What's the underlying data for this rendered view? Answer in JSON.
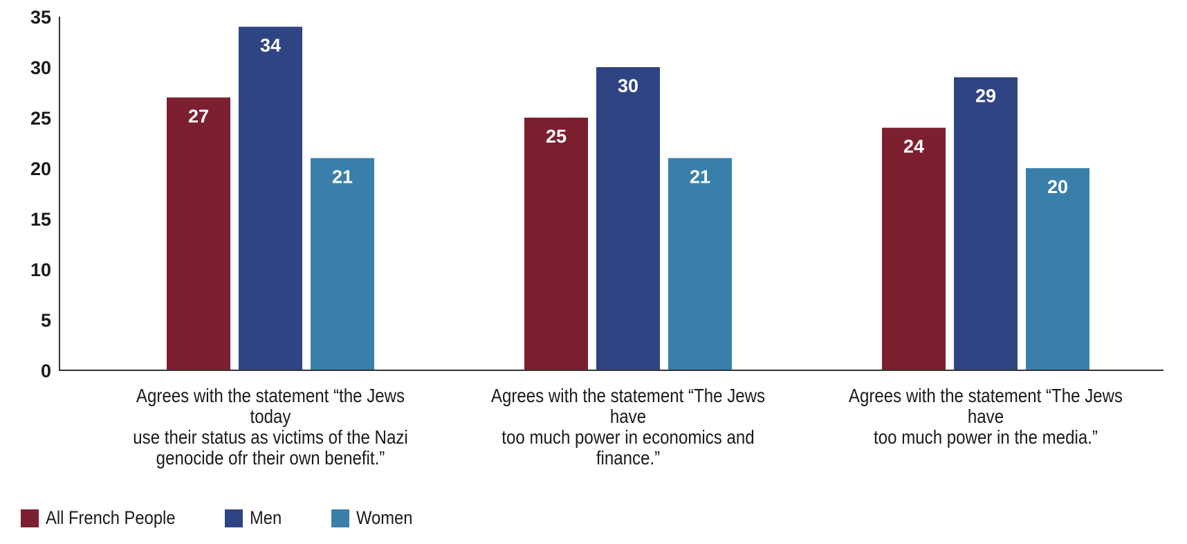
{
  "chart_data": {
    "type": "bar",
    "title": "",
    "xlabel": "",
    "ylabel": "",
    "ylim": [
      0,
      35
    ],
    "yticks": [
      "0",
      "5",
      "10",
      "15",
      "20",
      "25",
      "30",
      "35"
    ],
    "grid": false,
    "legend_position": "bottom-left",
    "categories": [
      "Agrees with the statement “the Jews today use their status as victims of the Nazi genocide ofr their own benefit.”",
      "Agrees with the statement “The Jews have too much power in economics and finance.”",
      "Agrees with the statement “The Jews have too much power in the media.”"
    ],
    "category_lines": [
      [
        "Agrees with the statement “the Jews today",
        "use their status as victims of the Nazi",
        "genocide ofr their own benefit.”"
      ],
      [
        "Agrees with the statement “The Jews have",
        "too much power in economics and finance.”"
      ],
      [
        "Agrees with the statement “The Jews have",
        "too much power in the media.”"
      ]
    ],
    "series": [
      {
        "name": "All French People",
        "color": "#7b1f31",
        "values": [
          27,
          25,
          24
        ]
      },
      {
        "name": "Men",
        "color": "#2f4483",
        "values": [
          34,
          30,
          29
        ]
      },
      {
        "name": "Women",
        "color": "#3a7faa",
        "values": [
          21,
          21,
          20
        ]
      }
    ]
  }
}
